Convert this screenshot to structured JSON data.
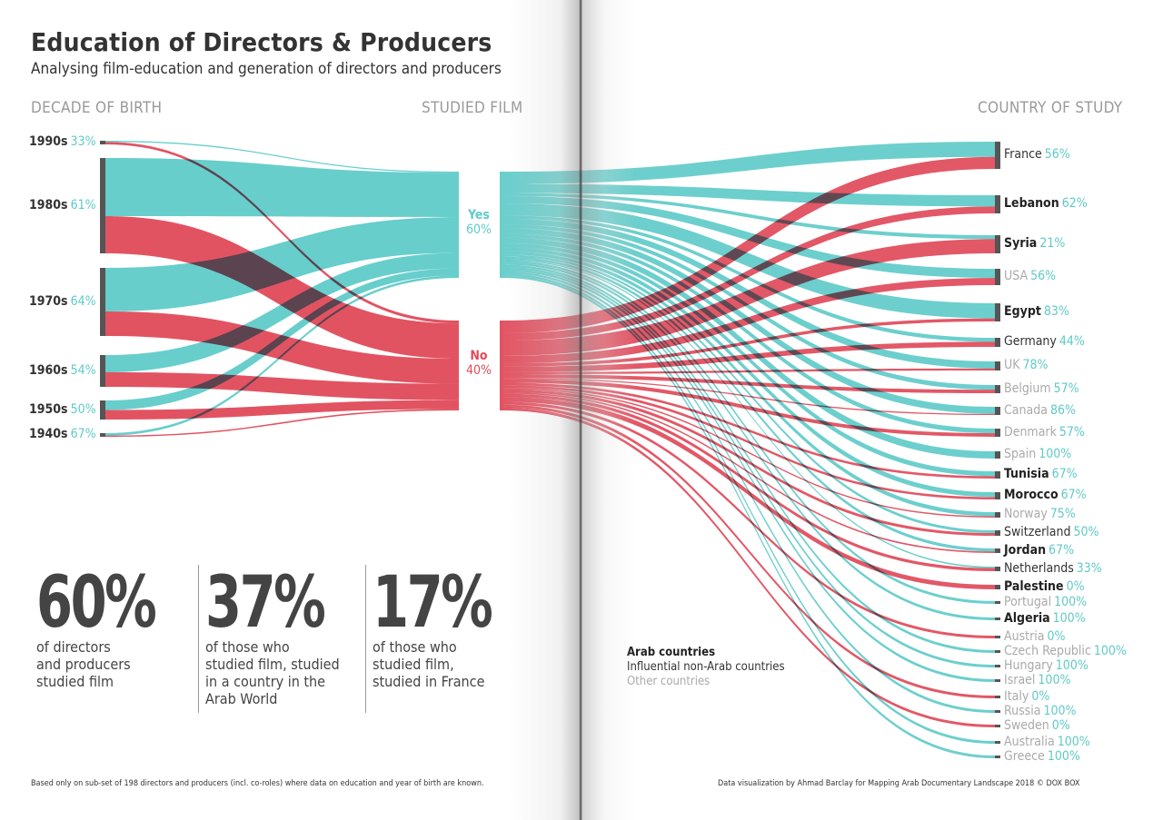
{
  "title": "Education of Directors & Producers",
  "subtitle": "Analysing film-education and generation of directors and producers",
  "column_headers": {
    "decade": "DECADE OF BIRTH",
    "studied": "STUDIED FILM",
    "country": "COUNTRY OF STUDY"
  },
  "colors": {
    "yes": "#5fcbc9",
    "no": "#e04a5a",
    "node": "#555555",
    "overlap": "#8b5452"
  },
  "chart_data": {
    "type": "sankey",
    "title": "Education of Directors & Producers",
    "decades": [
      {
        "name": "1990s",
        "pct_studied": "33%",
        "weight": 3
      },
      {
        "name": "1980s",
        "pct_studied": "61%",
        "weight": 61
      },
      {
        "name": "1970s",
        "pct_studied": "64%",
        "weight": 47
      },
      {
        "name": "1960s",
        "pct_studied": "54%",
        "weight": 24
      },
      {
        "name": "1950s",
        "pct_studied": "50%",
        "weight": 12
      },
      {
        "name": "1940s",
        "pct_studied": "67%",
        "weight": 3
      }
    ],
    "studied_film": [
      {
        "name": "Yes",
        "pct": "60%"
      },
      {
        "name": "No",
        "pct": "40%"
      }
    ],
    "countries": [
      {
        "name": "France",
        "pct_studied": "56%",
        "group": "influential"
      },
      {
        "name": "Lebanon",
        "pct_studied": "62%",
        "group": "arab"
      },
      {
        "name": "Syria",
        "pct_studied": "21%",
        "group": "arab"
      },
      {
        "name": "USA",
        "pct_studied": "56%",
        "group": "other"
      },
      {
        "name": "Egypt",
        "pct_studied": "83%",
        "group": "arab"
      },
      {
        "name": "Germany",
        "pct_studied": "44%",
        "group": "influential"
      },
      {
        "name": "UK",
        "pct_studied": "78%",
        "group": "other"
      },
      {
        "name": "Belgium",
        "pct_studied": "57%",
        "group": "other"
      },
      {
        "name": "Canada",
        "pct_studied": "86%",
        "group": "other"
      },
      {
        "name": "Denmark",
        "pct_studied": "57%",
        "group": "other"
      },
      {
        "name": "Spain",
        "pct_studied": "100%",
        "group": "other"
      },
      {
        "name": "Tunisia",
        "pct_studied": "67%",
        "group": "arab"
      },
      {
        "name": "Morocco",
        "pct_studied": "67%",
        "group": "arab"
      },
      {
        "name": "Norway",
        "pct_studied": "75%",
        "group": "other"
      },
      {
        "name": "Switzerland",
        "pct_studied": "50%",
        "group": "influential"
      },
      {
        "name": "Jordan",
        "pct_studied": "67%",
        "group": "arab"
      },
      {
        "name": "Netherlands",
        "pct_studied": "33%",
        "group": "influential"
      },
      {
        "name": "Palestine",
        "pct_studied": "0%",
        "group": "arab"
      },
      {
        "name": "Portugal",
        "pct_studied": "100%",
        "group": "other"
      },
      {
        "name": "Algeria",
        "pct_studied": "100%",
        "group": "arab"
      },
      {
        "name": "Austria",
        "pct_studied": "0%",
        "group": "other"
      },
      {
        "name": "Czech Republic",
        "pct_studied": "100%",
        "group": "other"
      },
      {
        "name": "Hungary",
        "pct_studied": "100%",
        "group": "other"
      },
      {
        "name": "Israel",
        "pct_studied": "100%",
        "group": "other"
      },
      {
        "name": "Italy",
        "pct_studied": "0%",
        "group": "other"
      },
      {
        "name": "Russia",
        "pct_studied": "100%",
        "group": "other"
      },
      {
        "name": "Sweden",
        "pct_studied": "0%",
        "group": "other"
      },
      {
        "name": "Australia",
        "pct_studied": "100%",
        "group": "other"
      },
      {
        "name": "Greece",
        "pct_studied": "100%",
        "group": "other"
      }
    ]
  },
  "stats": [
    {
      "value": "60%",
      "text": [
        "of directors",
        "and producers",
        "studied film"
      ]
    },
    {
      "value": "37%",
      "text": [
        "of those who",
        "studied film, studied",
        "in a country in the",
        "Arab World"
      ]
    },
    {
      "value": "17%",
      "text": [
        "of those who",
        "studied film,",
        "studied in France"
      ]
    }
  ],
  "legend": {
    "arab": "Arab countries",
    "influential": "Influential non-Arab countries",
    "other": "Other countries"
  },
  "footer": {
    "left": "Based only on sub-set of 198 directors and producers (incl. co-roles) where data on education and year of birth are known.",
    "right": "Data visualization by Ahmad Barclay for Mapping Arab Documentary Landscape 2018 © DOX BOX"
  }
}
